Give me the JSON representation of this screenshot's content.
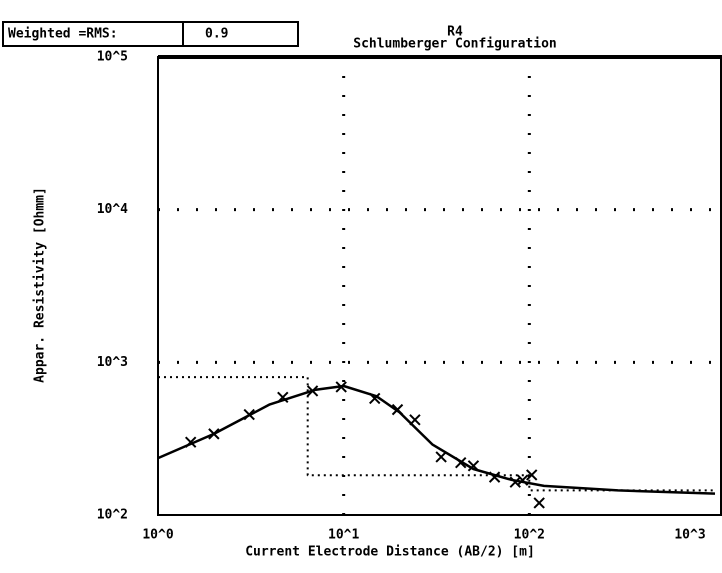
{
  "chart_data": {
    "type": "line",
    "header_label": "Weighted =RMS:",
    "header_value": "0.9",
    "subtitle": "R4",
    "title": "Schlumberger Configuration",
    "xlabel": "Current Electrode Distance (AB/2) [m]",
    "ylabel": "Appar. Resistivity [Ohmm]",
    "xscale": "log",
    "yscale": "log",
    "grid": true,
    "xlim": [
      1,
      1000
    ],
    "ylim": [
      100,
      100000
    ],
    "xticks": [
      {
        "value": 1,
        "label": "10^0"
      },
      {
        "value": 10,
        "label": "10^1"
      },
      {
        "value": 100,
        "label": "10^2"
      },
      {
        "value": 1000,
        "label": "10^3"
      }
    ],
    "yticks": [
      {
        "value": 100,
        "label": "10^2"
      },
      {
        "value": 1000,
        "label": "10^3"
      },
      {
        "value": 10000,
        "label": "10^4"
      },
      {
        "value": 100000,
        "label": "10^5"
      }
    ],
    "series": [
      {
        "style": "markers",
        "color": "#000000",
        "x": [
          1.5,
          2.0,
          3.1,
          4.7,
          6.8,
          9.7,
          14.7,
          19.5,
          24.2,
          33.5,
          42.7,
          50,
          65,
          84,
          92,
          103,
          113
        ],
        "values": [
          300,
          340,
          455,
          590,
          650,
          690,
          580,
          490,
          420,
          240,
          220,
          210,
          177,
          164,
          169,
          183,
          120
        ]
      },
      {
        "style": "solid",
        "color": "#000000",
        "x": [
          1,
          2,
          4,
          7,
          10,
          15,
          20,
          30,
          50,
          80,
          120,
          300,
          1000
        ],
        "values": [
          236,
          340,
          530,
          660,
          700,
          600,
          470,
          290,
          200,
          170,
          155,
          145,
          138
        ]
      },
      {
        "style": "dotted",
        "color": "#000000",
        "x": [
          1,
          6.4,
          6.4,
          100,
          100,
          1000
        ],
        "values": [
          800,
          800,
          182,
          182,
          145,
          145
        ]
      }
    ]
  }
}
